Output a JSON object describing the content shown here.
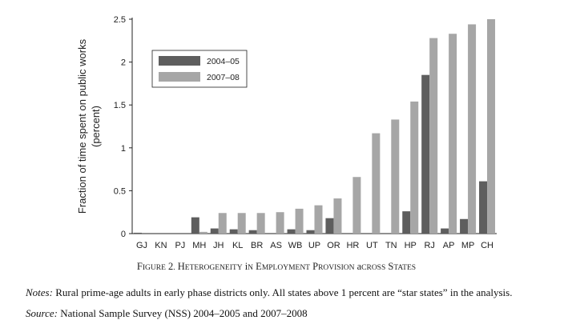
{
  "chart_data": {
    "type": "bar",
    "categories": [
      "GJ",
      "KN",
      "PJ",
      "MH",
      "JH",
      "KL",
      "BR",
      "AS",
      "WB",
      "UP",
      "OR",
      "HR",
      "UT",
      "TN",
      "HP",
      "RJ",
      "AP",
      "MP",
      "CH"
    ],
    "series": [
      {
        "name": "2004–05",
        "color": "#5e5e5e",
        "values": [
          0.01,
          0,
          0,
          0.19,
          0.06,
          0.05,
          0.04,
          0,
          0.05,
          0.04,
          0.18,
          0,
          0,
          0,
          0.26,
          1.85,
          0.06,
          0.17,
          0.61
        ]
      },
      {
        "name": "2007–08",
        "color": "#a6a6a6",
        "values": [
          0,
          0,
          0,
          0.02,
          0.24,
          0.24,
          0.24,
          0.25,
          0.29,
          0.33,
          0.41,
          0.66,
          1.17,
          1.33,
          1.54,
          2.28,
          2.33,
          2.44,
          2.5
        ]
      }
    ],
    "yticks": [
      "0",
      "0.5",
      "1",
      "1.5",
      "2",
      "2.5"
    ],
    "ylim": [
      0,
      2.5
    ],
    "ylabel_line1": "Fraction of time spent on public works",
    "ylabel_line2": "(percent)",
    "legend_position": "top-left"
  },
  "caption": {
    "label": "Figure 2.",
    "title": "Heterogeneity in Employment Provision across States"
  },
  "notes": {
    "notes_lead": "Notes:",
    "notes_text": "Rural prime-age adults in early phase districts only. All states above 1 percent are “star states” in the analysis.",
    "source_lead": "Source:",
    "source_text": "National Sample Survey (NSS) 2004–2005 and 2007–2008"
  }
}
